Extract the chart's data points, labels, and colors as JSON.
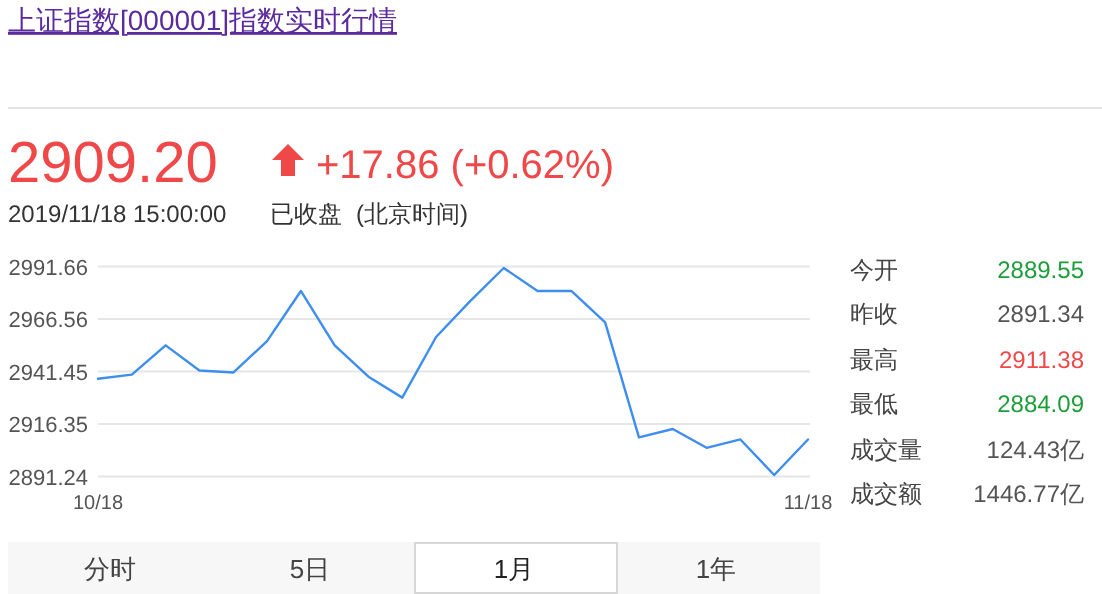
{
  "chart_data": {
    "type": "line",
    "title": "上证指数[000001]指数实时行情",
    "categories": [
      "10/18",
      null,
      null,
      null,
      null,
      null,
      null,
      null,
      null,
      null,
      null,
      null,
      null,
      null,
      null,
      null,
      null,
      null,
      null,
      null,
      null,
      "11/18"
    ],
    "series": [
      {
        "color": "#3d8ef0",
        "values": [
          2938,
          2940,
          2954,
          2942,
          2941,
          2956,
          2980,
          2954,
          2939,
          2929,
          2958,
          2975,
          2991,
          2980,
          2980,
          2965,
          2910,
          2914,
          2905,
          2909,
          2892,
          2909
        ]
      }
    ],
    "ylim": [
      2891.24,
      2991.66
    ],
    "yticks": [
      2891.24,
      2916.35,
      2941.45,
      2966.56,
      2991.66
    ],
    "grid": "y",
    "marker": "none",
    "line_style": "solid",
    "annotations": [
      "2909.20",
      "+17.86 (+0.62%)",
      "2019/11/18 15:00:00",
      "已收盘",
      "(北京时间)",
      "今开",
      "2889.55",
      "昨收",
      "2891.34",
      "最高",
      "2911.38",
      "最低",
      "2884.09",
      "成交量",
      "124.43亿",
      "成交额",
      "1446.77亿",
      "分时",
      "5日",
      "1月",
      "1年"
    ]
  }
}
